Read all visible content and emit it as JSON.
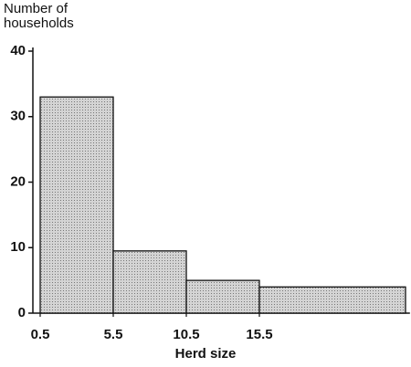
{
  "chart_data": {
    "type": "histogram",
    "ylabel": "Number of households",
    "xlabel": "Herd size",
    "bins": [
      0.5,
      5.5,
      10.5,
      15.5,
      25.5
    ],
    "values": [
      33,
      9.5,
      5,
      4
    ],
    "color": "#d4d4d4",
    "xlim": [
      0,
      25.8
    ],
    "xticks": [
      0.5,
      5.5,
      10.5,
      15.5
    ],
    "ylim": [
      0,
      40
    ],
    "yticks": [
      0,
      10,
      20,
      30,
      40
    ]
  }
}
